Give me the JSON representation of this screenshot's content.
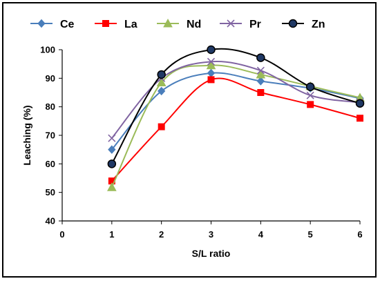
{
  "chart_data": {
    "type": "line",
    "title": "",
    "xlabel": "S/L ratio",
    "ylabel": "Leaching (%)",
    "xlim": [
      0,
      6
    ],
    "ylim": [
      40,
      100
    ],
    "xticks": [
      "0",
      "1",
      "2",
      "3",
      "4",
      "5",
      "6"
    ],
    "yticks": [
      "40",
      "50",
      "60",
      "70",
      "80",
      "90",
      "100"
    ],
    "grid": false,
    "legend_position": "top",
    "x": [
      1,
      2,
      3,
      4,
      5,
      6
    ],
    "series": [
      {
        "name": "Ce",
        "values": [
          65,
          85.5,
          91.8,
          89,
          86.5,
          83
        ],
        "color": "#4a7ebb",
        "marker": "diamond"
      },
      {
        "name": "La",
        "values": [
          54,
          73,
          89.5,
          85,
          80.8,
          76
        ],
        "color": "#ff0000",
        "marker": "square"
      },
      {
        "name": "Nd",
        "values": [
          51.8,
          88.5,
          94.5,
          91.3,
          87.2,
          83.2
        ],
        "color": "#9bbb59",
        "marker": "triangle"
      },
      {
        "name": "Pr",
        "values": [
          69,
          90,
          95.8,
          92.7,
          84,
          81.5
        ],
        "color": "#8064a2",
        "marker": "x"
      },
      {
        "name": "Zn",
        "values": [
          60,
          91.3,
          100,
          97.2,
          87,
          81.2
        ],
        "color": "#000000",
        "marker": "circle",
        "marker_fill": "#1f3864"
      }
    ]
  }
}
